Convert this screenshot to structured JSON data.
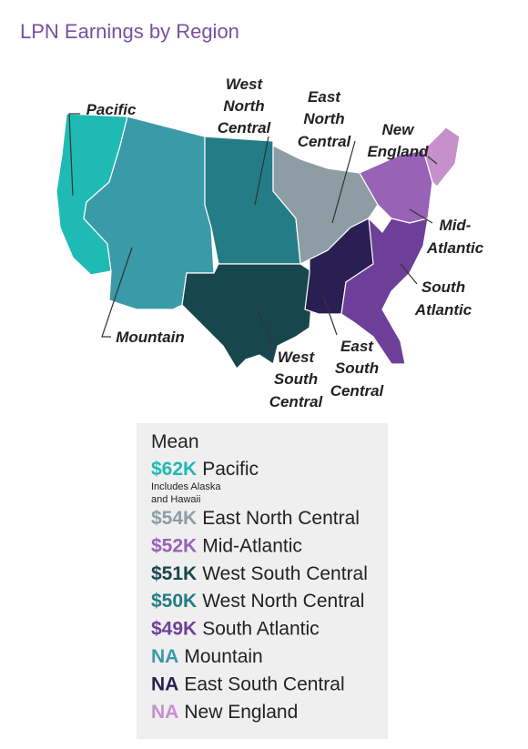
{
  "title": "LPN Earnings by Region",
  "map_labels": [
    {
      "lines": [
        "Pacific"
      ]
    },
    {
      "lines": [
        "West",
        "North",
        "Central"
      ]
    },
    {
      "lines": [
        "East",
        "North",
        "Central"
      ]
    },
    {
      "lines": [
        "New",
        "England"
      ]
    },
    {
      "lines": [
        "Mid-",
        "Atlantic"
      ]
    },
    {
      "lines": [
        "South",
        "Atlantic"
      ]
    },
    {
      "lines": [
        "Mountain"
      ]
    },
    {
      "lines": [
        "West",
        "South",
        "Central"
      ]
    },
    {
      "lines": [
        "East",
        "South",
        "Central"
      ]
    }
  ],
  "legend": {
    "heading": "Mean",
    "items": [
      {
        "value": "$62K",
        "region": "Pacific",
        "color": "#1fbab4",
        "note": [
          "Includes Alaska",
          "and Hawaii"
        ]
      },
      {
        "value": "$54K",
        "region": "East North Central",
        "color": "#8e9da4"
      },
      {
        "value": "$52K",
        "region": "Mid-Atlantic",
        "color": "#9862b6"
      },
      {
        "value": "$51K",
        "region": "West South Central",
        "color": "#17474d"
      },
      {
        "value": "$50K",
        "region": "West North Central",
        "color": "#237c86"
      },
      {
        "value": "$49K",
        "region": "South Atlantic",
        "color": "#6e3f98"
      },
      {
        "value": "NA",
        "region": "Mountain",
        "color": "#3a9aa8"
      },
      {
        "value": "NA",
        "region": "East South Central",
        "color": "#2a1f52"
      },
      {
        "value": "NA",
        "region": "New England",
        "color": "#c590cc"
      }
    ]
  }
}
